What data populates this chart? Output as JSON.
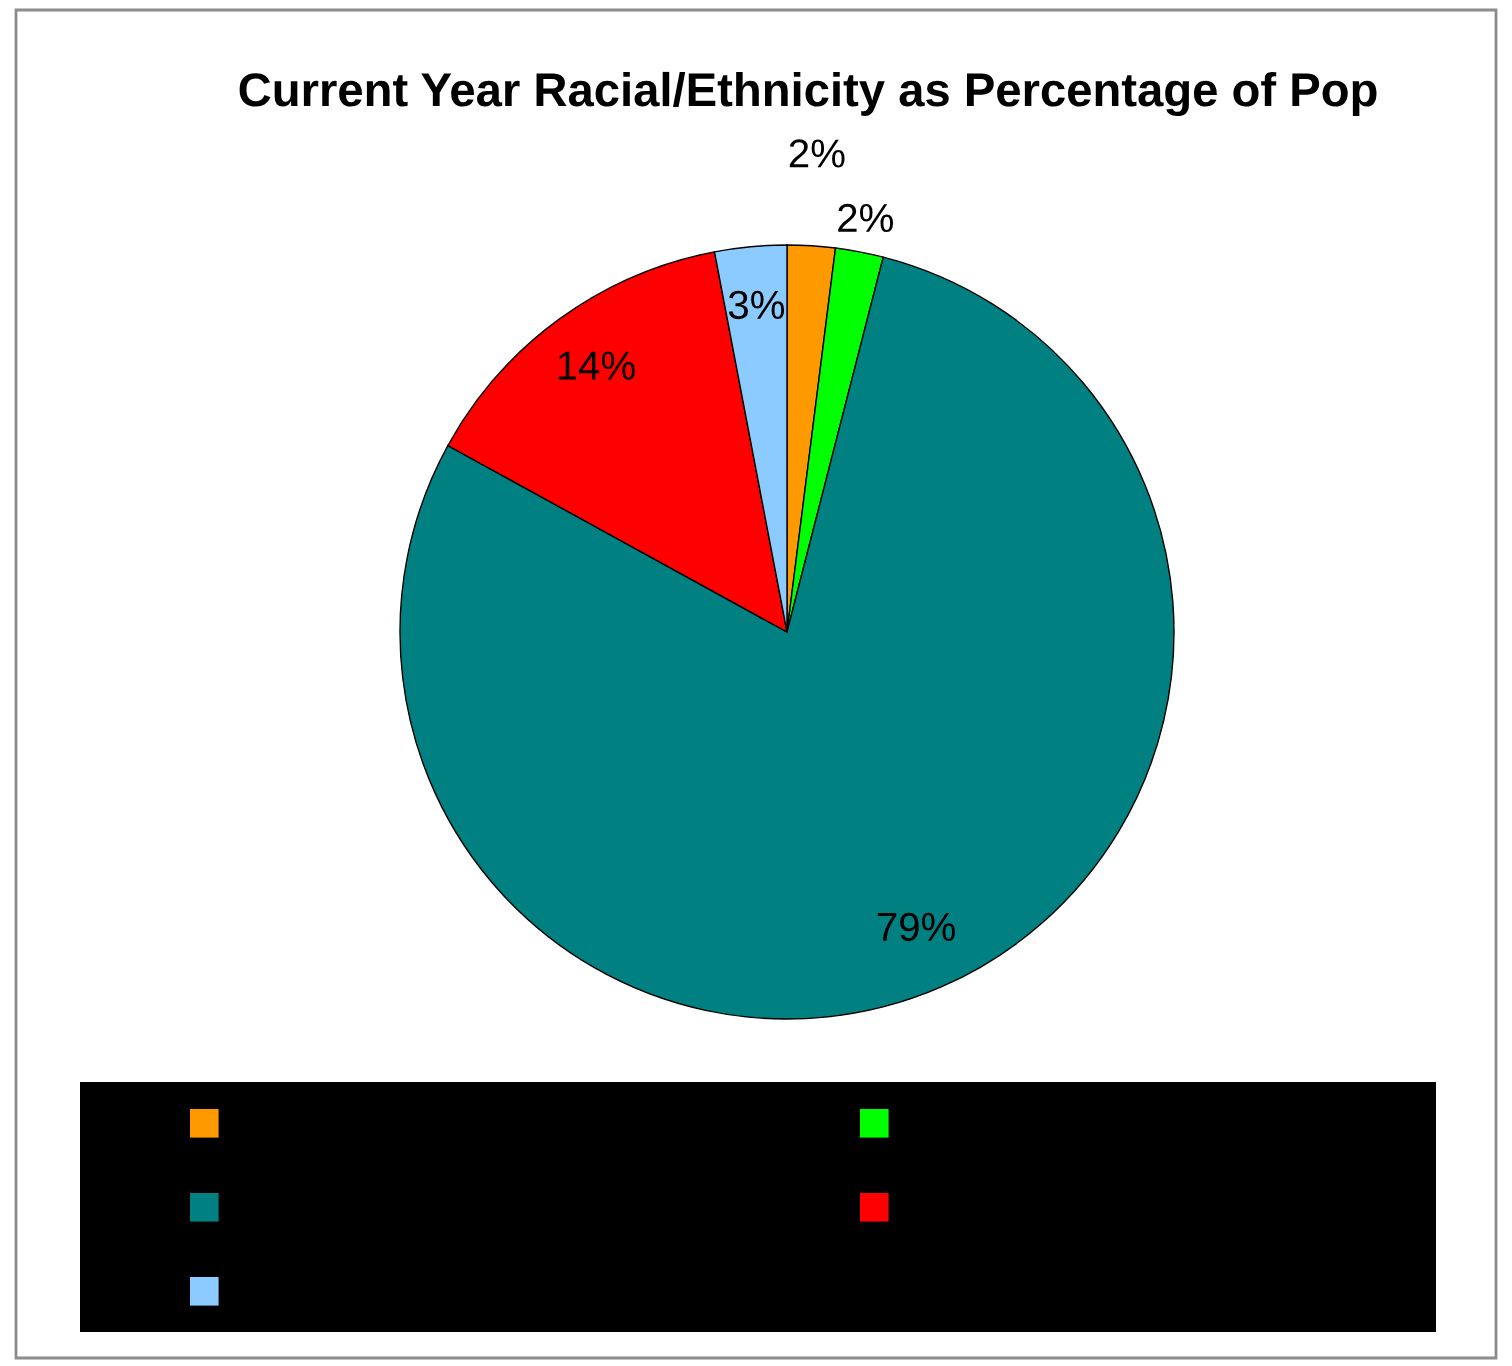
{
  "chart_data": {
    "type": "pie",
    "title": "Current Year Racial/Ethnicity as Percentage of Pop",
    "categories": [
      null,
      null,
      null,
      null,
      null
    ],
    "values": [
      2,
      2,
      79,
      14,
      3
    ],
    "colors": [
      "#ff9900",
      "#00ff00",
      "#008080",
      "#ff0000",
      "#8ccbff"
    ],
    "value_labels": [
      "2%",
      "2%",
      "79%",
      "14%",
      "3%"
    ]
  }
}
